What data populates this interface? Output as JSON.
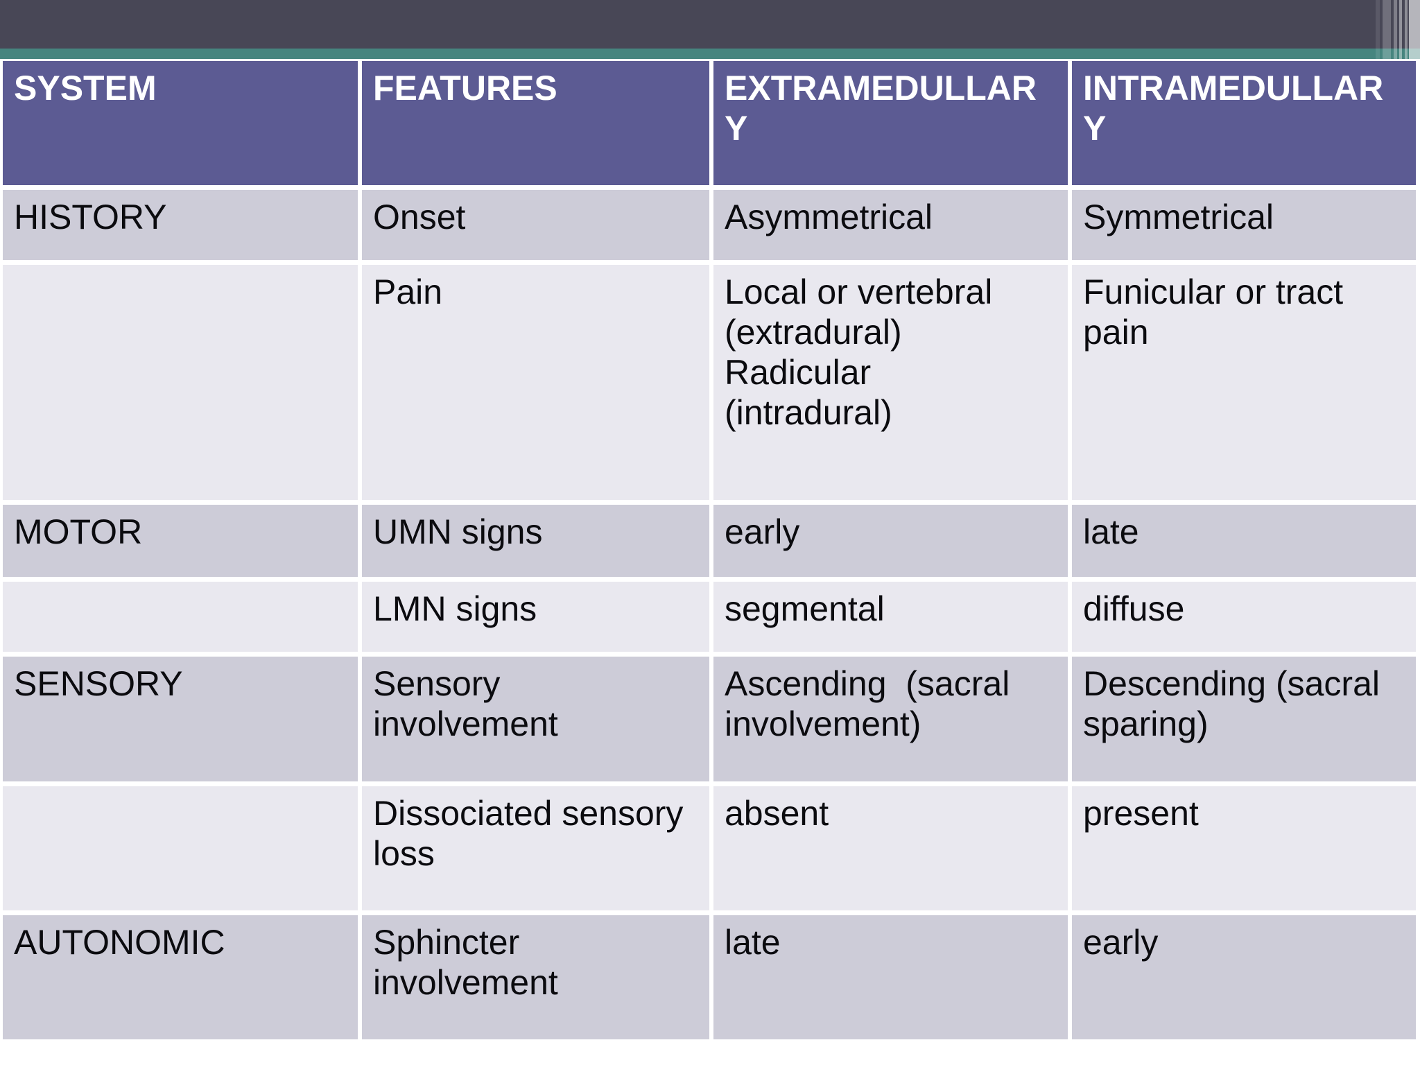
{
  "theme": {
    "slide_bg": "#FFFFFF",
    "top_bar_color": "#484756",
    "accent_stripe_color": "#46857F",
    "header_bg": "#5C5B93",
    "header_text_color": "#FFFFFF",
    "row_dark_bg": "#CDCCD8",
    "row_light_bg": "#E9E8EF",
    "body_text_color": "#0B0B0F"
  },
  "table": {
    "header_labels": [
      "SYSTEM",
      "FEATURES",
      "EXTRAMEDULLAR\nY",
      "INTRAMEDULLAR\nY"
    ],
    "rows": [
      {
        "cells": [
          "HISTORY",
          "Onset",
          "Asymmetrical",
          "Symmetrical"
        ]
      },
      {
        "cells": [
          "",
          "Pain",
          "Local or vertebral\n(extradural)\nRadicular\n(intradural)",
          "Funicular or tract\npain"
        ]
      },
      {
        "cells": [
          "MOTOR",
          "UMN signs",
          "early",
          "late"
        ]
      },
      {
        "cells": [
          "",
          "LMN signs",
          "segmental",
          "diffuse"
        ]
      },
      {
        "cells": [
          "SENSORY",
          "Sensory\ninvolvement",
          "Ascending  (sacral\ninvolvement)",
          "Descending (sacral\nsparing)"
        ]
      },
      {
        "cells": [
          "",
          "Dissociated sensory\nloss",
          "absent",
          "present"
        ]
      },
      {
        "cells": [
          "AUTONOMIC",
          "Sphincter\ninvolvement",
          "late",
          "early"
        ]
      }
    ]
  }
}
